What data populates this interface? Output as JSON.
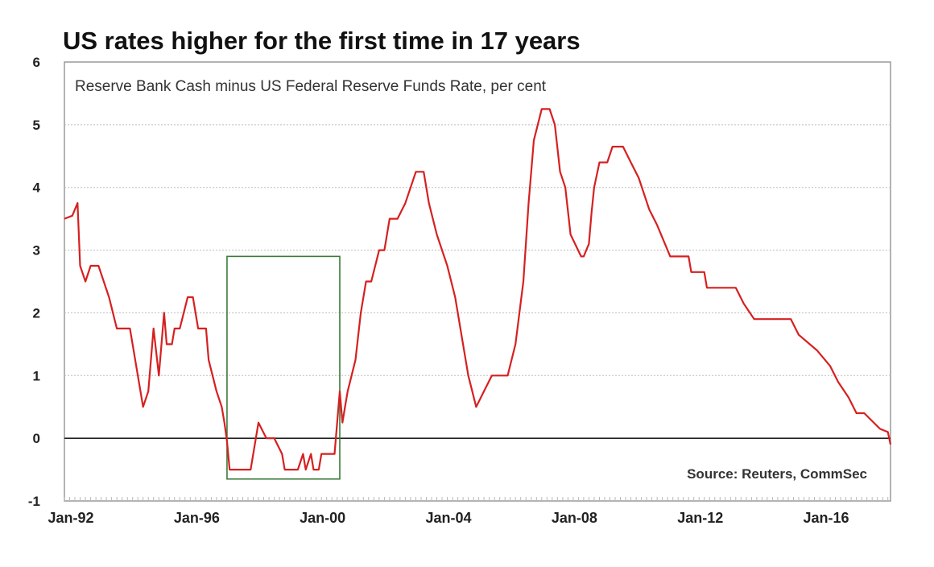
{
  "chart_data": {
    "type": "line",
    "title": "US rates higher for the first time in 17 years",
    "subtitle": "Reserve Bank Cash minus US Federal Reserve Funds Rate, per cent",
    "source": "Source: Reuters, CommSec",
    "xlabel": "",
    "ylabel": "",
    "ylim": [
      -1,
      6
    ],
    "xlim": [
      "1992-01",
      "2018-04"
    ],
    "y_ticks": [
      "-1",
      "0",
      "1",
      "2",
      "3",
      "4",
      "5",
      "6"
    ],
    "x_ticks": [
      {
        "label": "Jan-92",
        "x": "1992-01"
      },
      {
        "label": "Jan-96",
        "x": "1996-01"
      },
      {
        "label": "Jan-00",
        "x": "2000-01"
      },
      {
        "label": "Jan-04",
        "x": "2004-01"
      },
      {
        "label": "Jan-08",
        "x": "2008-01"
      },
      {
        "label": "Jan-12",
        "x": "2012-01"
      },
      {
        "label": "Jan-16",
        "x": "2016-01"
      }
    ],
    "grid": true,
    "highlight_box": {
      "x": [
        "1997-03",
        "2000-10"
      ],
      "y": [
        -0.65,
        2.9
      ],
      "color": "#3a7a3a"
    },
    "series": [
      {
        "color": "#d62020",
        "x": [
          "1992-01",
          "1992-04",
          "1992-06",
          "1992-07",
          "1992-09",
          "1992-11",
          "1992-12",
          "1993-02",
          "1993-06",
          "1993-09",
          "1993-11",
          "1994-02",
          "1994-07",
          "1994-09",
          "1994-11",
          "1995-01",
          "1995-03",
          "1995-04",
          "1995-06",
          "1995-07",
          "1995-09",
          "1995-12",
          "1996-02",
          "1996-04",
          "1996-07",
          "1996-08",
          "1996-11",
          "1997-01",
          "1997-02",
          "1997-03",
          "1997-04",
          "1997-05",
          "1997-06",
          "1997-07",
          "1997-12",
          "1998-03",
          "1998-06",
          "1998-09",
          "1998-12",
          "1999-01",
          "1999-03",
          "1999-06",
          "1999-08",
          "1999-09",
          "1999-11",
          "1999-12",
          "2000-01",
          "2000-02",
          "2000-03",
          "2000-04",
          "2000-05",
          "2000-08",
          "2000-10",
          "2000-11",
          "2000-12",
          "2001-01",
          "2001-04",
          "2001-06",
          "2001-08",
          "2001-10",
          "2002-01",
          "2002-03",
          "2002-05",
          "2002-08",
          "2002-11",
          "2003-03",
          "2003-06",
          "2003-08",
          "2003-11",
          "2004-03",
          "2004-06",
          "2004-08",
          "2004-11",
          "2005-02",
          "2005-05",
          "2005-08",
          "2005-11",
          "2006-02",
          "2006-05",
          "2006-08",
          "2006-10",
          "2006-12",
          "2007-03",
          "2007-06",
          "2007-08",
          "2007-10",
          "2007-12",
          "2008-02",
          "2008-06",
          "2008-07",
          "2008-09",
          "2008-10",
          "2008-11",
          "2009-01",
          "2009-04",
          "2009-06",
          "2009-10",
          "2010-01",
          "2010-04",
          "2010-08",
          "2010-11",
          "2011-04",
          "2011-11",
          "2011-12",
          "2012-05",
          "2012-06",
          "2012-10",
          "2012-12",
          "2013-05",
          "2013-08",
          "2013-12",
          "2015-02",
          "2015-05",
          "2015-12",
          "2016-05",
          "2016-08",
          "2016-12",
          "2017-03",
          "2017-06",
          "2017-12",
          "2018-03",
          "2018-04"
        ],
        "values": [
          3.5,
          3.55,
          3.75,
          2.75,
          2.5,
          2.75,
          2.75,
          2.75,
          2.25,
          1.75,
          1.75,
          1.75,
          0.5,
          0.75,
          1.75,
          1.0,
          2.0,
          1.5,
          1.5,
          1.75,
          1.75,
          2.25,
          2.25,
          1.75,
          1.75,
          1.25,
          0.75,
          0.5,
          0.25,
          -0.05,
          -0.5,
          -0.5,
          -0.5,
          -0.5,
          -0.5,
          0.25,
          0.0,
          0.0,
          -0.25,
          -0.5,
          -0.5,
          -0.5,
          -0.25,
          -0.5,
          -0.25,
          -0.5,
          -0.5,
          -0.5,
          -0.25,
          -0.25,
          -0.25,
          -0.25,
          0.75,
          0.25,
          0.5,
          0.75,
          1.25,
          2.0,
          2.5,
          2.5,
          3.0,
          3.0,
          3.5,
          3.5,
          3.75,
          4.25,
          4.25,
          3.75,
          3.25,
          2.75,
          2.25,
          1.75,
          1.0,
          0.5,
          0.75,
          1.0,
          1.0,
          1.0,
          1.5,
          2.5,
          3.75,
          4.75,
          5.25,
          5.25,
          5.0,
          4.25,
          4.0,
          3.25,
          2.9,
          2.9,
          3.1,
          3.6,
          4.0,
          4.4,
          4.4,
          4.65,
          4.65,
          4.4,
          4.15,
          3.65,
          3.4,
          2.9,
          2.9,
          2.65,
          2.65,
          2.4,
          2.4,
          2.4,
          2.4,
          2.15,
          1.9,
          1.9,
          1.65,
          1.4,
          1.15,
          0.9,
          0.65,
          0.4,
          0.4,
          0.15,
          0.1,
          -0.1
        ]
      }
    ]
  }
}
